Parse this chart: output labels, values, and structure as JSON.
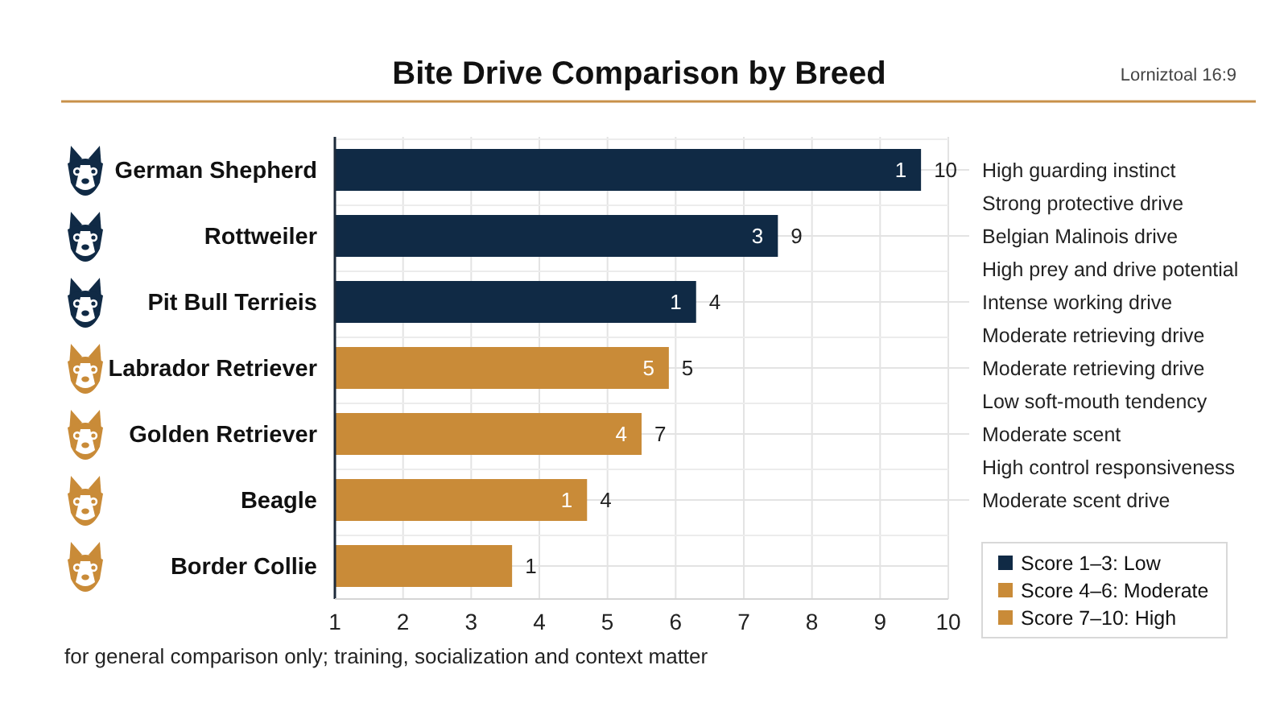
{
  "chart_data": {
    "type": "bar",
    "orientation": "horizontal",
    "title": "Bite Drive Comparison by Breed",
    "categories": [
      "German Shepherd",
      "Rottweiler",
      "Pit Bull Terrieis",
      "Labrador Retriever",
      "Golden Retriever",
      "Beagle",
      "Border Collie"
    ],
    "series": [
      {
        "name": "Score 1–3: Low",
        "color": "#102a45",
        "values": [
          9.6,
          7.5,
          6.3,
          null,
          null,
          null,
          null
        ]
      },
      {
        "name": "Score 4–6: Moderate",
        "color": "#c98b38",
        "values": [
          null,
          null,
          null,
          5.9,
          5.5,
          4.7,
          3.6
        ]
      },
      {
        "name": "Score 7–10: High",
        "color": "#c98b38",
        "values": [
          null,
          null,
          null,
          null,
          null,
          null,
          null
        ]
      }
    ],
    "xlim": [
      1,
      10
    ],
    "xticks": [
      1,
      2,
      3,
      4,
      5,
      6,
      7,
      8,
      9,
      10
    ],
    "grid": true,
    "legend": "bottom right",
    "annotations": [
      "Lorniztoal 16:9",
      "for general comparison only; training, socialization and context matter",
      "High guarding instinct",
      "Strong protective drive",
      "Belgian Malinois drive",
      "High prey and drive potential",
      "Intense working drive",
      "Moderate retrieving drive",
      "Moderate retrieving drive",
      "Low soft-mouth tendency",
      "Moderate scent",
      "High control responsiveness",
      "Moderate scent drive",
      {
        "text": "1",
        "x": 9.6,
        "y": "German Shepherd"
      },
      {
        "text": "10",
        "x": 9.6,
        "y": "German Shepherd"
      },
      {
        "text": "3",
        "x": 7.5,
        "y": "Rottweiler"
      },
      {
        "text": "9",
        "x": 7.5,
        "y": "Rottweiler"
      },
      {
        "text": "1",
        "x": 6.3,
        "y": "Pit Bull Terrieis"
      },
      {
        "text": "4",
        "x": 6.3,
        "y": "Pit Bull Terrieis"
      },
      {
        "text": "5",
        "x": 5.9,
        "y": "Labrador Retriever"
      },
      {
        "text": "5",
        "x": 5.9,
        "y": "Labrador Retriever"
      },
      {
        "text": "4",
        "x": 5.5,
        "y": "Golden Retriever"
      },
      {
        "text": "7",
        "x": 5.5,
        "y": "Golden Retriever"
      },
      {
        "text": "1",
        "x": 4.7,
        "y": "Beagle"
      },
      {
        "text": "4",
        "x": 4.7,
        "y": "Beagle"
      },
      {
        "text": "1",
        "x": 3.6,
        "y": "Border Collie"
      }
    ]
  }
}
